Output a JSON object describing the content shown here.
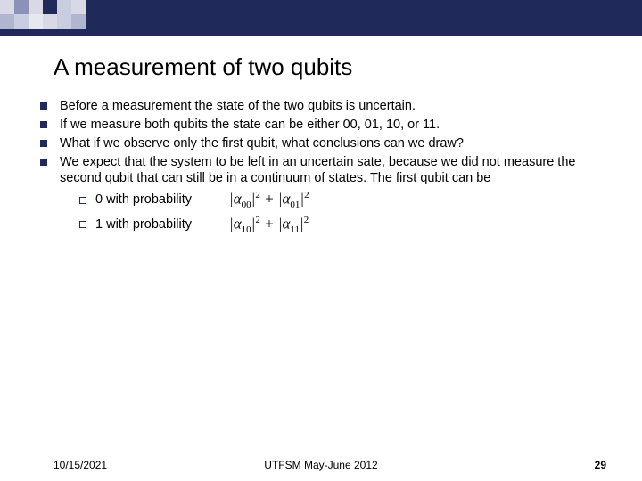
{
  "header": {
    "bar_color": "#1f2a5a",
    "square_colors": [
      "#d9d9e6",
      "#8a92b8",
      "#d9d9e6",
      "#1f2a5a",
      "#c9cde0",
      "#d9d9e6",
      "#b0b6d0",
      "#c9cde0",
      "#e6e8f0",
      "#d9d9e6",
      "#c9cde0",
      "#b0b6d0"
    ]
  },
  "title": "A measurement of two qubits",
  "bullets": [
    "Before a measurement the state of the two qubits is uncertain.",
    "If we measure both qubits the state can be either 00, 01, 10, or 11.",
    "What if we observe only the first qubit, what conclusions can we draw?",
    "We expect that the system to be left in an uncertain sate, because we did not measure the second qubit that can still be in a continuum of states. The first qubit can be"
  ],
  "sub_bullets": [
    {
      "text": "0 with probability",
      "formula_subs": [
        "00",
        "01"
      ]
    },
    {
      "text": "1 with probability",
      "formula_subs": [
        "10",
        "11"
      ]
    }
  ],
  "footer": {
    "date": "10/15/2021",
    "center": "UTFSM   May-June 2012",
    "page": "29"
  }
}
